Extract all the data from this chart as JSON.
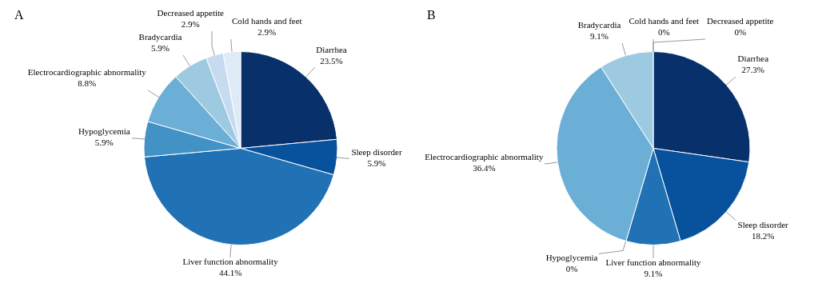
{
  "chart_data": [
    {
      "type": "pie",
      "title": "A",
      "categories": [
        "Diarrhea",
        "Sleep disorder",
        "Liver function abnormality",
        "Hypoglycemia",
        "Electrocardiographic abnormality",
        "Bradycardia",
        "Decreased appetite",
        "Cold hands and feet"
      ],
      "values": [
        23.5,
        5.9,
        44.1,
        5.9,
        8.8,
        5.9,
        2.9,
        2.9
      ],
      "value_labels": [
        "23.5%",
        "5.9%",
        "44.1%",
        "5.9%",
        "8.8%",
        "5.9%",
        "2.9%",
        "2.9%"
      ],
      "colors": [
        "#08306b",
        "#08519c",
        "#2171b5",
        "#4292c6",
        "#6baed6",
        "#9ecae1",
        "#c6dbef",
        "#deebf7"
      ],
      "legend": false
    },
    {
      "type": "pie",
      "title": "B",
      "categories": [
        "Diarrhea",
        "Sleep disorder",
        "Liver function abnormality",
        "Hypoglycemia",
        "Electrocardiographic abnormality",
        "Bradycardia",
        "Cold hands and feet",
        "Decreased appetite"
      ],
      "values": [
        27.3,
        18.2,
        9.1,
        0,
        36.4,
        9.1,
        0,
        0
      ],
      "value_labels": [
        "27.3%",
        "18.2%",
        "9.1%",
        "0%",
        "36.4%",
        "9.1%",
        "0%",
        "0%"
      ],
      "colors": [
        "#08306b",
        "#08519c",
        "#2171b5",
        "#4292c6",
        "#6baed6",
        "#9ecae1",
        "#c6dbef",
        "#deebf7"
      ],
      "legend": false
    }
  ]
}
